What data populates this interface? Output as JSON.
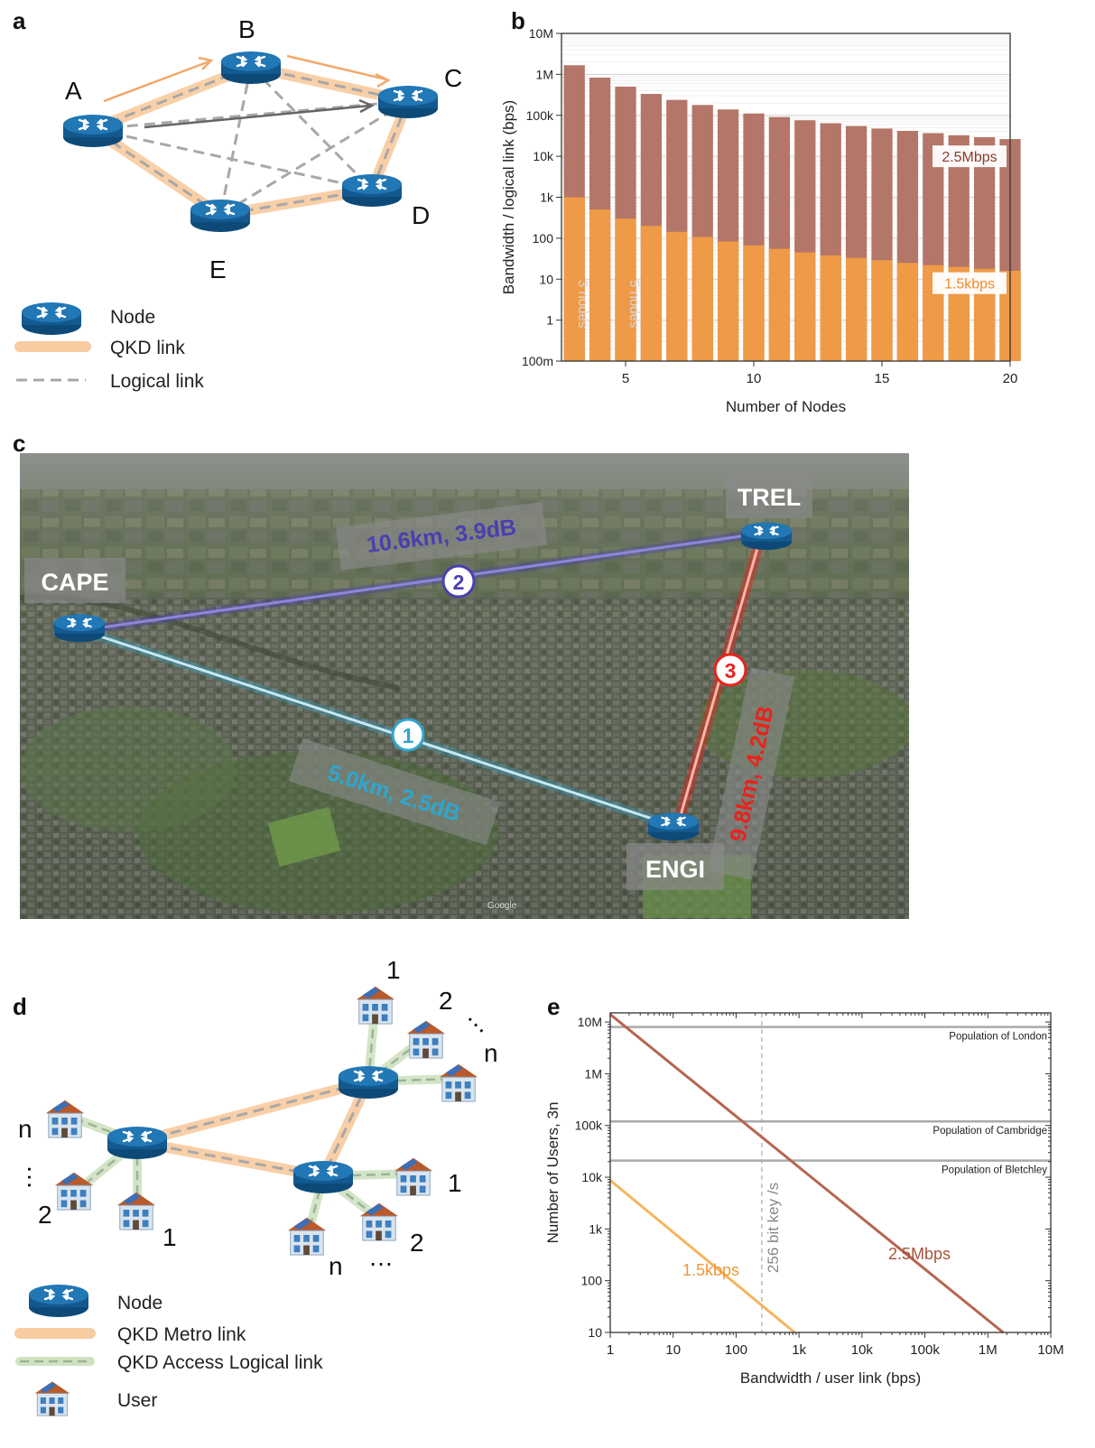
{
  "panel_labels": {
    "a": "a",
    "b": "b",
    "c": "c",
    "d": "d",
    "e": "e"
  },
  "panel_a": {
    "nodes": [
      {
        "id": "A",
        "label": "A"
      },
      {
        "id": "B",
        "label": "B"
      },
      {
        "id": "C",
        "label": "C"
      },
      {
        "id": "D",
        "label": "D"
      },
      {
        "id": "E",
        "label": "E"
      }
    ],
    "legend": {
      "node": "Node",
      "qkd_link": "QKD link",
      "logical_link": "Logical link"
    }
  },
  "panel_c": {
    "nodes": {
      "cape": "CAPE",
      "trel": "TREL",
      "engi": "ENGI"
    },
    "links": [
      {
        "num": "1",
        "label": "5.0km, 2.5dB",
        "color": "#2fa6cf"
      },
      {
        "num": "2",
        "label": "10.6km, 3.9dB",
        "color": "#4a3fb0"
      },
      {
        "num": "3",
        "label": "9.8km, 4.2dB",
        "color": "#e8231c"
      }
    ],
    "watermark": "Google"
  },
  "panel_d": {
    "labels": {
      "n": "n",
      "one": "1",
      "two": "2",
      "dots": "…"
    },
    "legend": {
      "node": "Node",
      "metro": "QKD Metro link",
      "access": "QKD Access Logical link",
      "user": "User"
    }
  },
  "chart_data": [
    {
      "type": "bar",
      "panel": "b",
      "xlabel": "Number of Nodes",
      "ylabel": "Bandwidth / logical link (bps)",
      "yscale": "log",
      "ylim": [
        0.1,
        10000000
      ],
      "xlim": [
        2.5,
        20
      ],
      "ytick_labels": [
        "100m",
        "1",
        "10",
        "100",
        "1k",
        "10k",
        "100k",
        "1M",
        "10M"
      ],
      "xtick_labels": [
        "5",
        "10",
        "15",
        "20"
      ],
      "x": [
        3,
        4,
        5,
        6,
        7,
        8,
        9,
        10,
        11,
        12,
        13,
        14,
        15,
        16,
        17,
        18,
        19,
        20
      ],
      "series": [
        {
          "name": "2.5Mbps",
          "color": "#b47668",
          "values": [
            1670000,
            833000,
            500000,
            333000,
            238000,
            179000,
            139000,
            111000,
            90900,
            75800,
            64100,
            54900,
            47600,
            41700,
            36800,
            32700,
            29200,
            26300
          ]
        },
        {
          "name": "1.5kbps",
          "color": "#ef9a47",
          "values": [
            1000,
            500,
            300,
            200,
            143,
            107,
            83,
            67,
            55,
            45,
            38,
            33,
            29,
            25,
            22,
            20,
            18,
            16
          ]
        }
      ],
      "bar_annotations": [
        {
          "x": 3,
          "text": "3 nodes"
        },
        {
          "x": 5,
          "text": "5 nodes"
        }
      ]
    },
    {
      "type": "line",
      "panel": "e",
      "xlabel": "Bandwidth / user link (bps)",
      "ylabel": "Number of Users, 3n",
      "xscale": "log",
      "yscale": "log",
      "xlim": [
        1,
        10000000
      ],
      "ylim": [
        10,
        15000000
      ],
      "xtick_labels": [
        "1",
        "10",
        "100",
        "1k",
        "10k",
        "100k",
        "1M",
        "10M"
      ],
      "ytick_labels": [
        "10",
        "100",
        "1k",
        "10k",
        "100k",
        "1M",
        "10M"
      ],
      "series": [
        {
          "name": "2.5Mbps",
          "color": "#b5654e",
          "x": [
            1,
            1750000
          ],
          "y": [
            14000000,
            10
          ]
        },
        {
          "name": "1.5kbps",
          "color": "#f5b45e",
          "x": [
            1,
            850
          ],
          "y": [
            8700,
            10
          ]
        }
      ],
      "hlines": [
        {
          "label": "Population of London",
          "y": 8000000
        },
        {
          "label": "Population of Cambridge",
          "y": 120000
        },
        {
          "label": "Population of Bletchley",
          "y": 21000
        }
      ],
      "vline": {
        "label": "256 bit key /s",
        "x": 256
      }
    }
  ]
}
